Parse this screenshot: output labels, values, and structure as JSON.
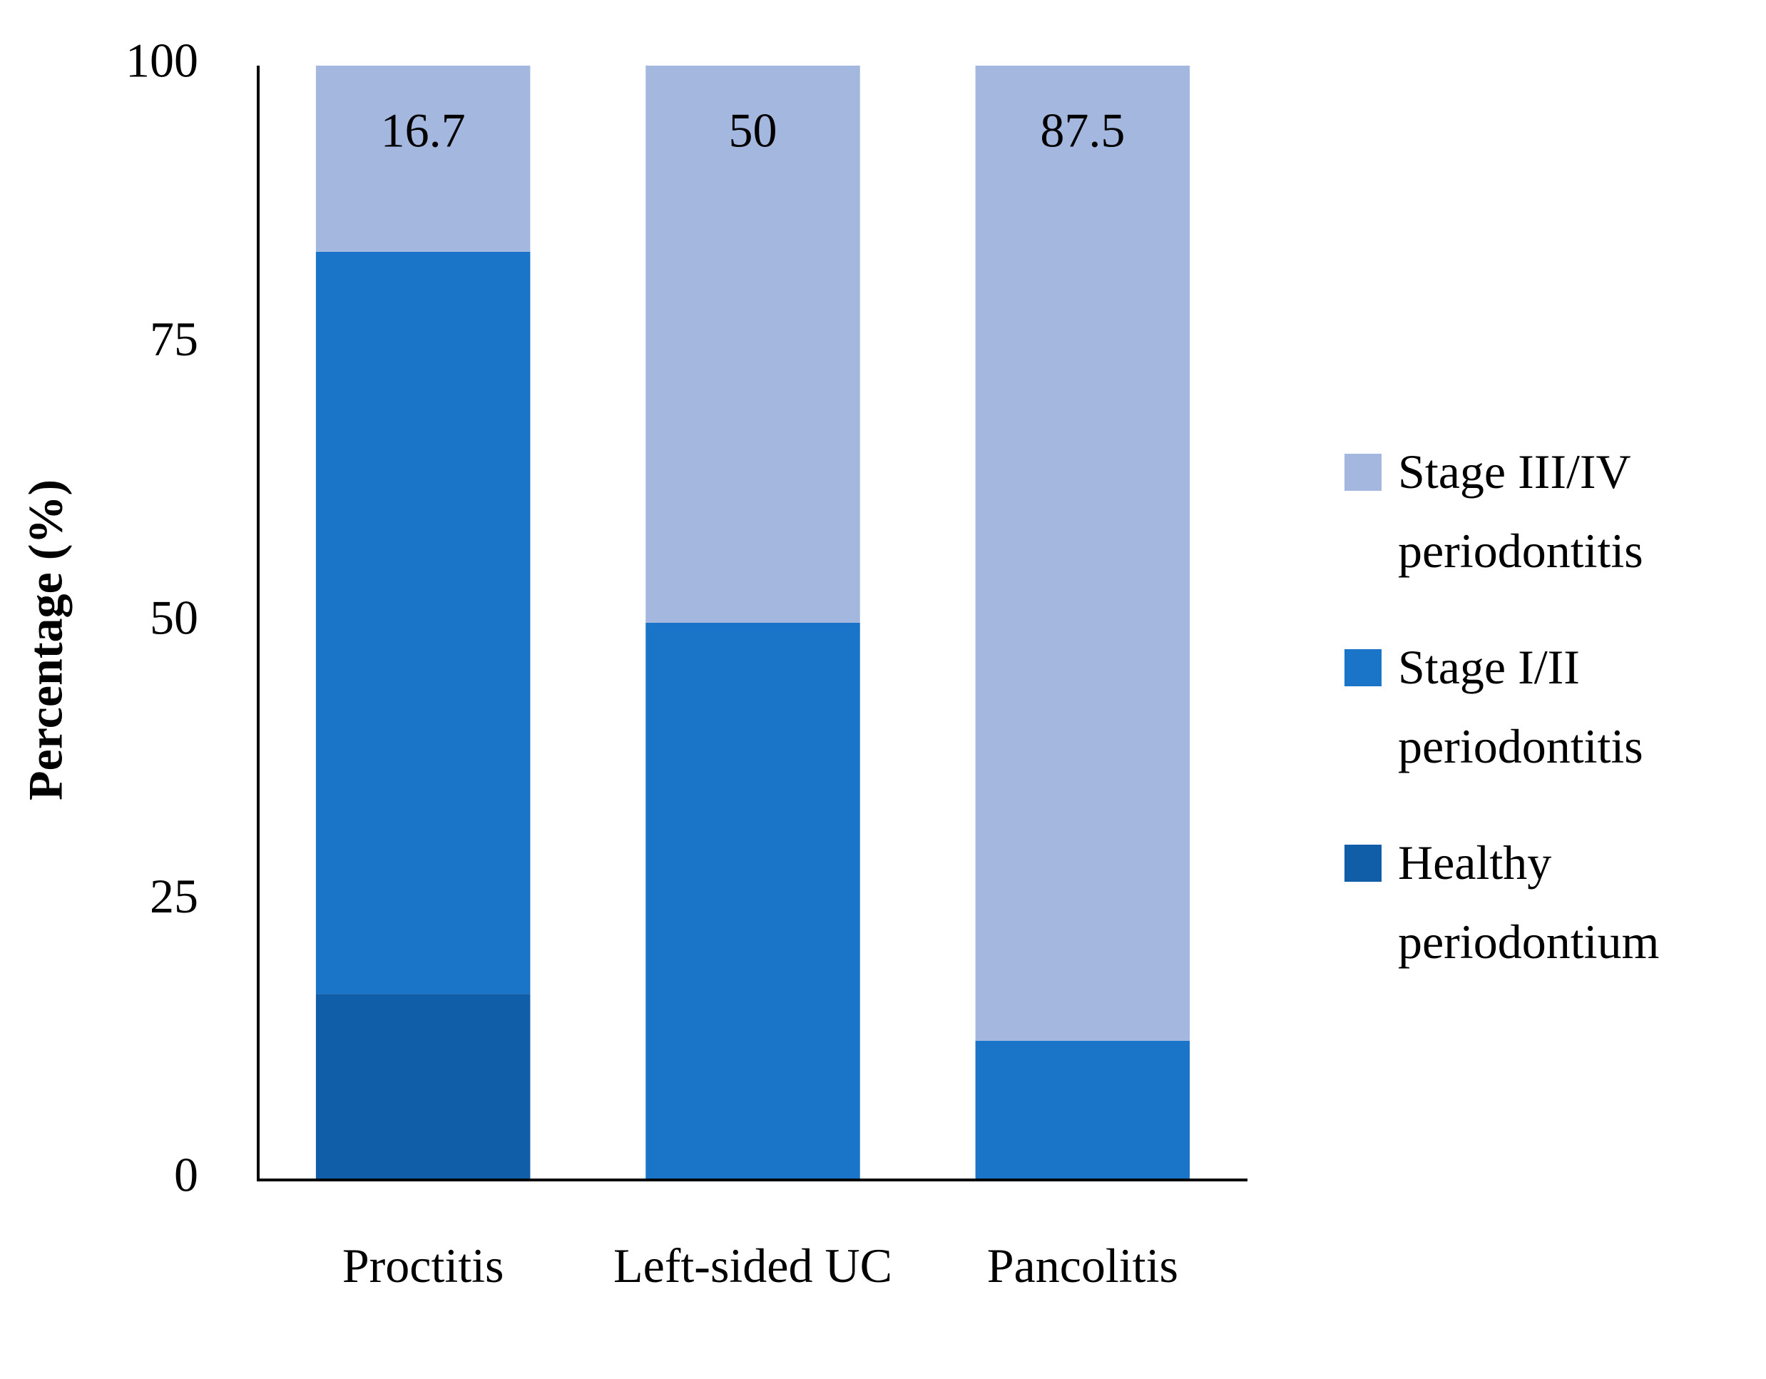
{
  "chart_data": {
    "type": "stacked_bar",
    "y_label": "Percentage (%)",
    "categories": [
      "Proctitis",
      "Left-sided UC",
      "Pancolitis"
    ],
    "series": [
      {
        "name": "Healthy periodontium",
        "color": "#115ea8",
        "values": [
          16.7,
          0,
          0
        ]
      },
      {
        "name": "Stage I/II periodontitis",
        "color": "#1a75c9",
        "values": [
          66.6,
          50,
          12.5
        ]
      },
      {
        "name": "Stage III/IV periodontitis",
        "color": "#a4b7df",
        "values": [
          16.7,
          50,
          87.5
        ],
        "show_labels": true
      }
    ],
    "ylim": [
      0,
      100
    ],
    "yticks": [
      0,
      25,
      50,
      75,
      100
    ],
    "legend": "right"
  }
}
